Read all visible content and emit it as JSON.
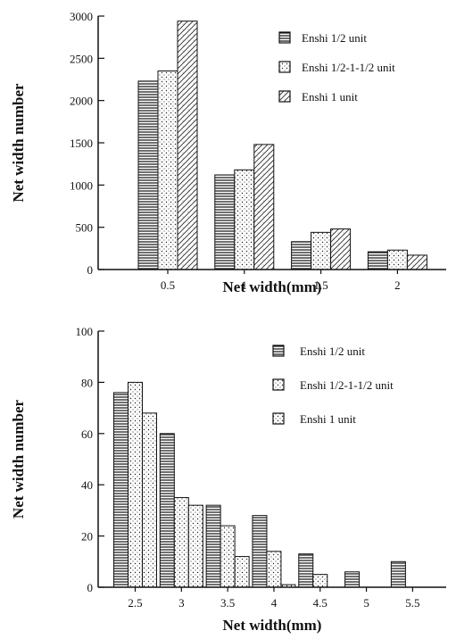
{
  "chart_data": [
    {
      "type": "bar",
      "categories": [
        "0.5",
        "1",
        "1.5",
        "2"
      ],
      "series": [
        {
          "name": "Enshi 1/2 unit",
          "values": [
            2230,
            1120,
            330,
            210
          ]
        },
        {
          "name": "Enshi 1/2-1-1/2 unit",
          "values": [
            2350,
            1180,
            440,
            230
          ]
        },
        {
          "name": "Enshi 1 unit",
          "values": [
            2940,
            1480,
            480,
            170
          ]
        }
      ],
      "xlabel": "Net  width(mm)",
      "ylabel": "Net  width number",
      "ylim": [
        0,
        3000
      ],
      "yticks": [
        "0",
        "500",
        "1000",
        "1500",
        "2000",
        "2500",
        "3000"
      ],
      "legend_position": "top-right",
      "grid": false,
      "patterns": [
        "horizontal-lines",
        "dots",
        "diagonal-hatch"
      ]
    },
    {
      "type": "bar",
      "categories": [
        "2.5",
        "3",
        "3.5",
        "4",
        "4.5",
        "5",
        "5.5"
      ],
      "series": [
        {
          "name": "Enshi 1/2 unit",
          "values": [
            76,
            60,
            32,
            28,
            13,
            6,
            10
          ]
        },
        {
          "name": "Enshi 1/2-1-1/2 unit",
          "values": [
            80,
            35,
            24,
            14,
            5,
            0,
            0
          ]
        },
        {
          "name": "Enshi 1 unit",
          "values": [
            68,
            32,
            12,
            1,
            0,
            0,
            0
          ]
        }
      ],
      "xlabel": "Net  width(mm)",
      "ylabel": "Net width number",
      "ylim": [
        0,
        100
      ],
      "yticks": [
        "0",
        "20",
        "40",
        "60",
        "80",
        "100"
      ],
      "legend_position": "top-right",
      "grid": false,
      "patterns": [
        "horizontal-lines",
        "dots",
        "dots"
      ]
    }
  ]
}
